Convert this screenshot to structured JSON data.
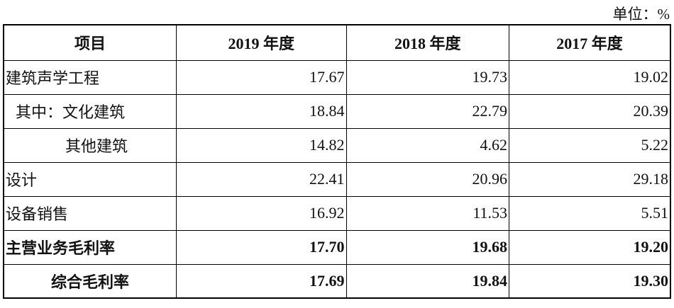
{
  "header": {
    "unit": "单位：%"
  },
  "table": {
    "columns": [
      "项目",
      "2019 年度",
      "2018 年度",
      "2017 年度"
    ],
    "rows": [
      [
        "建筑声学工程",
        "17.67",
        "19.73",
        "19.02"
      ],
      [
        "其中：文化建筑",
        "18.84",
        "22.79",
        "20.39"
      ],
      [
        "其他建筑",
        "14.82",
        "4.62",
        "5.22"
      ],
      [
        "设计",
        "22.41",
        "20.96",
        "29.18"
      ],
      [
        "设备销售",
        "16.92",
        "11.53",
        "5.51"
      ],
      [
        "主营业务毛利率",
        "17.70",
        "19.68",
        "19.20"
      ],
      [
        "综合毛利率",
        "17.69",
        "19.84",
        "19.30"
      ]
    ]
  }
}
